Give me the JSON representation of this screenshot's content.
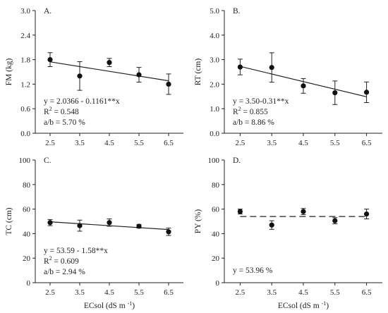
{
  "x_axis": {
    "ticks": [
      "2.5",
      "3.5",
      "4.5",
      "5.5",
      "6.5"
    ],
    "label_bottom_left": "ECsol (dS m",
    "label_bottom_right": "ECsol (dS m",
    "label_suffix": ")",
    "label_sup": "-1"
  },
  "chart_data": [
    {
      "type": "scatter",
      "letter": "A.",
      "ylabel": "FM (kg)",
      "ylim": [
        0,
        3.0
      ],
      "yticks": [
        "0.0",
        "0.6",
        "1.2",
        "1.8",
        "2.4",
        "3.0"
      ],
      "x": [
        2.5,
        3.5,
        4.5,
        5.5,
        6.5
      ],
      "y": [
        1.8,
        1.4,
        1.73,
        1.43,
        1.2
      ],
      "err": [
        0.17,
        0.35,
        0.1,
        0.18,
        0.25
      ],
      "fit": {
        "style": "solid",
        "intercept": 2.0366,
        "slope": -0.1161
      },
      "eq": "y = 2.0366 - 0.1161**x",
      "r2_label": "R",
      "r2_sup": "2",
      "r2_value": " =  0.548",
      "ab": "a/b = 5.70 %"
    },
    {
      "type": "scatter",
      "letter": "B.",
      "ylabel": "RT (cm)",
      "ylim": [
        0,
        5.0
      ],
      "yticks": [
        "0.0",
        "1.0",
        "2.0",
        "3.0",
        "4.0",
        "5.0"
      ],
      "x": [
        2.5,
        3.5,
        4.5,
        5.5,
        6.5
      ],
      "y": [
        2.7,
        2.68,
        1.93,
        1.65,
        1.67
      ],
      "err": [
        0.32,
        0.6,
        0.3,
        0.48,
        0.42
      ],
      "fit": {
        "style": "solid",
        "intercept": 3.5,
        "slope": -0.31
      },
      "eq": "y = 3.50-0.31**x",
      "r2_label": "R",
      "r2_sup": "2",
      "r2_value": " = 0.855",
      "ab": "a/b =  8.86 %"
    },
    {
      "type": "scatter",
      "letter": "C.",
      "ylabel": "TC (cm)",
      "ylim": [
        0,
        100
      ],
      "yticks": [
        "0",
        "20",
        "40",
        "60",
        "80",
        "100"
      ],
      "x": [
        2.5,
        3.5,
        4.5,
        5.5,
        6.5
      ],
      "y": [
        49.0,
        46.5,
        49.0,
        46.0,
        41.5
      ],
      "err": [
        2.5,
        4.5,
        3.0,
        1.5,
        3.0
      ],
      "fit": {
        "style": "solid",
        "intercept": 53.59,
        "slope": -1.58
      },
      "eq": "y = 53.59 - 1.58**x",
      "r2_label": "R",
      "r2_sup": "2",
      "r2_value": " = 0.609",
      "ab": "a/b = 2.94 %"
    },
    {
      "type": "scatter",
      "letter": "D.",
      "ylabel": "PY (%)",
      "ylim": [
        0,
        100
      ],
      "yticks": [
        "0",
        "20",
        "40",
        "60",
        "80",
        "100"
      ],
      "x": [
        2.5,
        3.5,
        4.5,
        5.5,
        6.5
      ],
      "y": [
        58.0,
        47.0,
        58.0,
        50.5,
        56.0
      ],
      "err": [
        2.0,
        3.5,
        2.5,
        2.5,
        4.0
      ],
      "fit": {
        "style": "dashed",
        "intercept": 53.96,
        "slope": 0
      },
      "eq": "y = 53.96 %",
      "r2_label": "",
      "r2_sup": "",
      "r2_value": "",
      "ab": ""
    }
  ]
}
